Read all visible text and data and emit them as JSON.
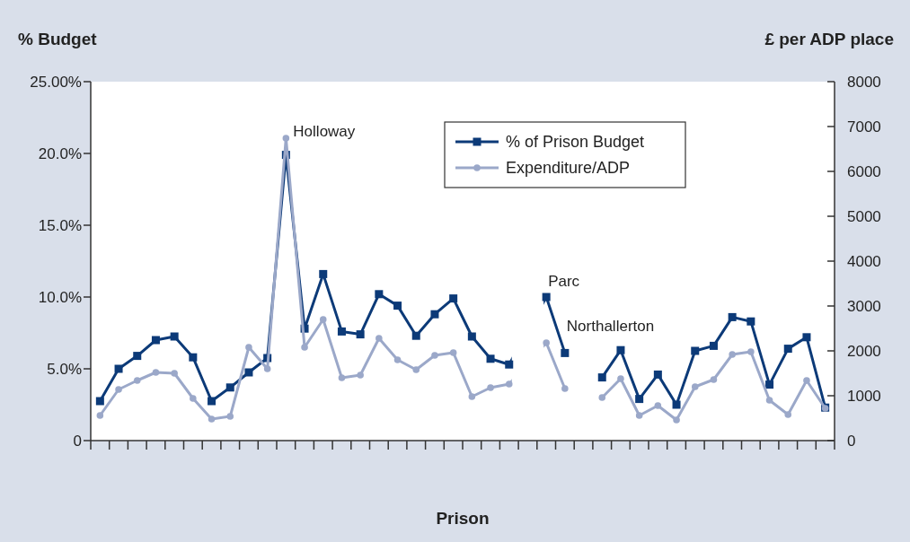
{
  "chart_data": {
    "type": "line",
    "xlabel": "Prison",
    "ylabel": "% Budget",
    "y2label": "£ per ADP place",
    "categories": [
      null,
      null,
      null,
      null,
      null,
      null,
      null,
      null,
      null,
      null,
      null,
      null,
      null,
      null,
      null,
      null,
      null,
      null,
      null,
      null,
      null,
      null,
      null,
      null,
      null,
      null,
      null,
      null,
      null,
      null,
      null,
      null,
      null,
      null,
      null,
      null,
      null,
      null,
      null,
      null
    ],
    "series": [
      {
        "name": "% of Prison Budget",
        "color": "#0c3a78",
        "marker": "square",
        "values": [
          2.75,
          5.0,
          5.9,
          7.0,
          7.25,
          5.8,
          2.75,
          3.7,
          4.75,
          5.75,
          19.9,
          7.8,
          11.6,
          7.6,
          7.4,
          10.2,
          9.4,
          7.3,
          8.8,
          9.9,
          7.25,
          5.7,
          5.3,
          null,
          10.0,
          6.1,
          null,
          4.4,
          6.3,
          2.9,
          4.6,
          2.5,
          6.25,
          6.6,
          8.6,
          8.3,
          3.9,
          6.4,
          7.2,
          2.3
        ]
      },
      {
        "name": "Expenditure/ADP",
        "color": "#9ba8c9",
        "marker": "circle",
        "axis": "y2",
        "values": [
          560,
          1140,
          1340,
          1520,
          1500,
          940,
          480,
          540,
          2080,
          1600,
          6740,
          2080,
          2700,
          1400,
          1460,
          2280,
          1800,
          1580,
          1900,
          1960,
          980,
          1180,
          1260,
          null,
          2180,
          1160,
          null,
          960,
          1380,
          560,
          780,
          460,
          1200,
          1360,
          1920,
          1980,
          900,
          580,
          1340,
          720
        ]
      }
    ],
    "ylim": [
      0,
      25
    ],
    "yticks": [
      {
        "value": 0,
        "label": "0"
      },
      {
        "value": 5,
        "label": "5.0%"
      },
      {
        "value": 10,
        "label": "10.0%"
      },
      {
        "value": 15,
        "label": "15.0%"
      },
      {
        "value": 20,
        "label": "20.0%"
      },
      {
        "value": 25,
        "label": "25.00%"
      }
    ],
    "y2lim": [
      0,
      8000
    ],
    "y2ticks": [
      0,
      1000,
      2000,
      3000,
      4000,
      5000,
      6000,
      7000,
      8000
    ],
    "annotations": [
      "Holloway",
      "Parc",
      "Northallerton"
    ],
    "legend": "top right",
    "grid": false
  }
}
